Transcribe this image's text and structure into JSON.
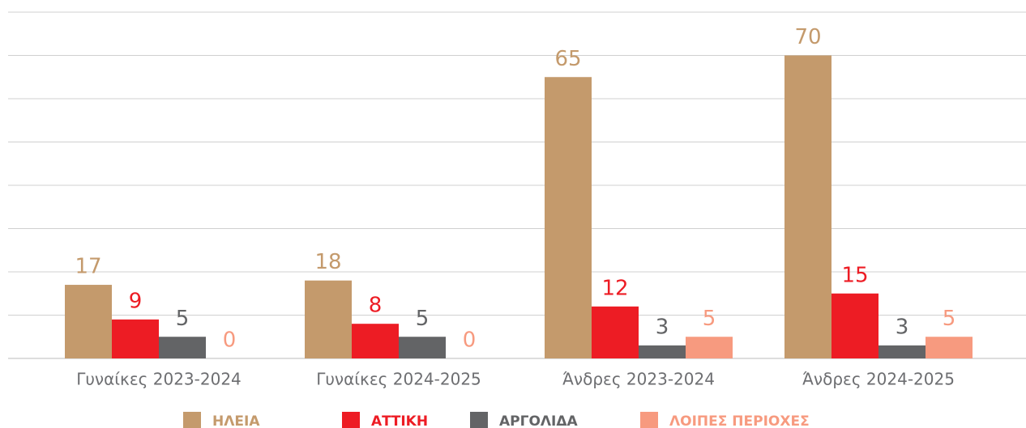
{
  "chart_data": {
    "type": "bar",
    "categories": [
      "Γυναίκες 2023-2024",
      "Γυναίκες 2024-2025",
      "Άνδρες 2023-2024",
      "Άνδρες 2024-2025"
    ],
    "series": [
      {
        "name": "ΗΛΕΙΑ",
        "color": "#c49a6c",
        "values": [
          17,
          18,
          65,
          70
        ]
      },
      {
        "name": "ΑΤΤΙΚΗ",
        "color": "#ed1c24",
        "values": [
          9,
          8,
          12,
          15
        ]
      },
      {
        "name": "ΑΡΓΟΛΙΔΑ",
        "color": "#636466",
        "values": [
          5,
          5,
          3,
          3
        ]
      },
      {
        "name": "ΛΟΙΠΕΣ ΠΕΡΙΟΧΕΣ",
        "color": "#f79a7f",
        "values": [
          0,
          0,
          5,
          5
        ]
      }
    ],
    "ylim": [
      0,
      80
    ],
    "yticks": [
      0,
      10,
      20,
      30,
      40,
      50,
      60,
      70,
      80
    ],
    "grid": true,
    "legend": "bottom"
  }
}
